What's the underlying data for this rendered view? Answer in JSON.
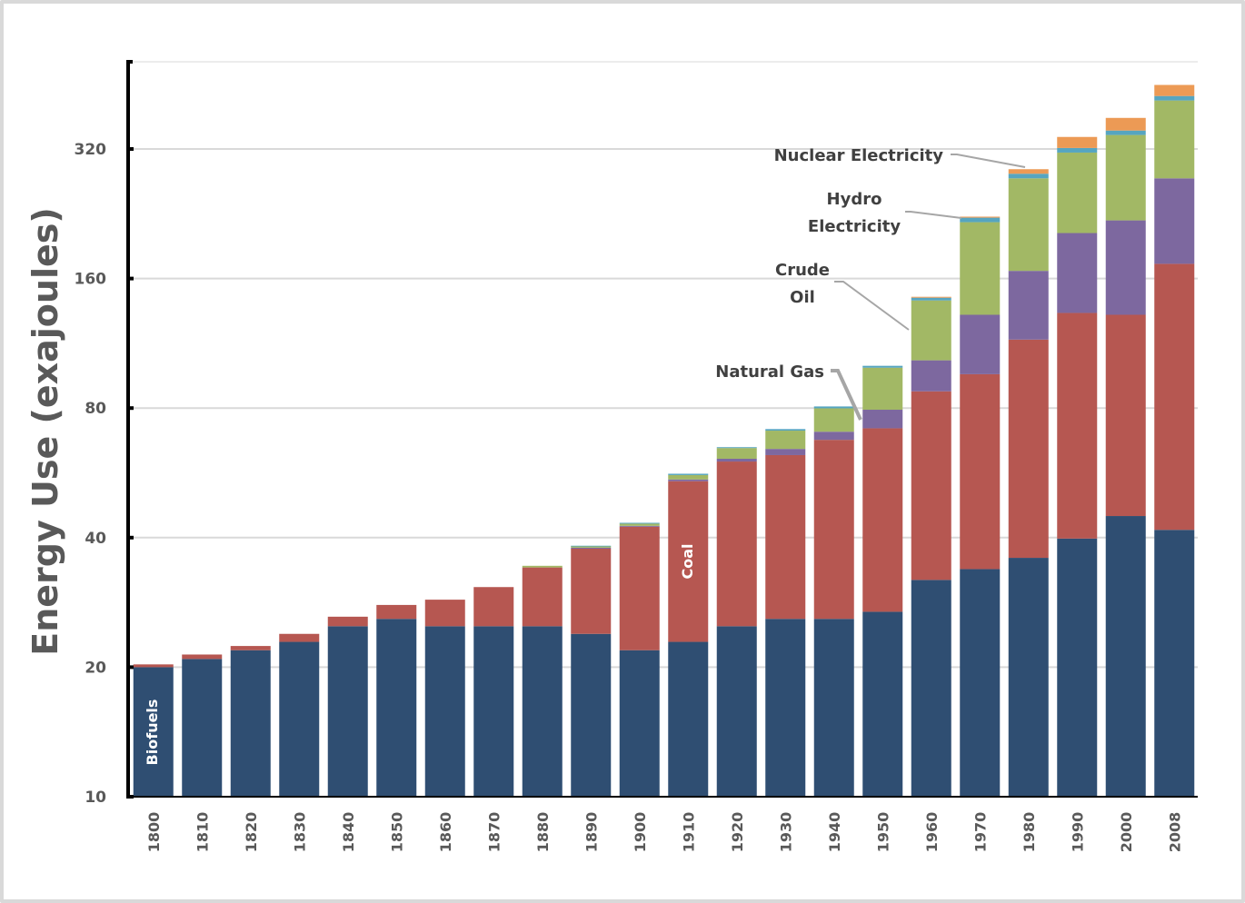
{
  "chart_data": {
    "type": "bar",
    "stacked": true,
    "title": "",
    "xlabel": "",
    "ylabel": "Energy Use (exajoules)",
    "yscale": "log2",
    "ylim": [
      10,
      400
    ],
    "yticks": [
      10,
      20,
      40,
      80,
      160,
      320
    ],
    "ytick_labels": [
      "10",
      "20",
      "40",
      "80",
      "160",
      "320"
    ],
    "grid": true,
    "legend": "none (series labelled by annotations)",
    "categories": [
      "1800",
      "1810",
      "1820",
      "1830",
      "1840",
      "1850",
      "1860",
      "1870",
      "1880",
      "1890",
      "1900",
      "1910",
      "1920",
      "1930",
      "1940",
      "1950",
      "1960",
      "1970",
      "1980",
      "1990",
      "2000",
      "2008"
    ],
    "series": [
      {
        "name": "Biofuels",
        "color": "#2f4e72",
        "values": [
          20.0,
          20.9,
          21.9,
          22.9,
          24.9,
          25.9,
          24.9,
          24.9,
          24.9,
          23.9,
          21.9,
          22.9,
          24.9,
          25.9,
          25.9,
          26.9,
          31.9,
          33.8,
          35.9,
          39.8,
          44.9,
          41.7
        ]
      },
      {
        "name": "Coal",
        "color": "#b65751",
        "values": [
          0.3,
          0.5,
          0.5,
          1.0,
          1.3,
          2.0,
          3.8,
          5.8,
          9.2,
          13.8,
          20.5,
          31.2,
          35.2,
          36.3,
          41.6,
          44.9,
          55.6,
          62.1,
          79.5,
          93.3,
          86.9,
          131.4
        ]
      },
      {
        "name": "Natural Gas",
        "color": "#7d689f",
        "values": [
          0,
          0,
          0,
          0,
          0,
          0,
          0,
          0,
          0,
          0.2,
          0.2,
          0.5,
          0.9,
          2.1,
          3.0,
          7.5,
          15.8,
          35.9,
          51.3,
          71.0,
          86.6,
          100.4
        ]
      },
      {
        "name": "Crude Oil",
        "color": "#a2b865",
        "values": [
          0,
          0,
          0,
          0,
          0,
          0,
          0,
          0,
          0.3,
          0.3,
          0.5,
          1.3,
          3.6,
          6.6,
          9.4,
          20.0,
          39.0,
          84.5,
          106.8,
          109.8,
          126.5,
          141.3
        ]
      },
      {
        "name": "Hydro Electricity",
        "color": "#56a5c0",
        "values": [
          0,
          0,
          0,
          0,
          0,
          0,
          0,
          0,
          0,
          0.1,
          0.2,
          0.4,
          0.3,
          0.6,
          0.8,
          1.0,
          2.1,
          5.3,
          6.8,
          7.8,
          8.3,
          10.1
        ]
      },
      {
        "name": "Nuclear Electricity",
        "color": "#ec9a55",
        "values": [
          0,
          0,
          0,
          0,
          0,
          0,
          0,
          0,
          0,
          0,
          0,
          0,
          0,
          0,
          0,
          0,
          0.7,
          1.2,
          6.9,
          19.6,
          24.7,
          25.9
        ]
      }
    ],
    "annotations": [
      {
        "text": "Biofuels",
        "target_series": "Biofuels",
        "target_category": "1800",
        "placement": "inside-bar-rotated"
      },
      {
        "text": "Coal",
        "target_series": "Coal",
        "target_category": "1910",
        "placement": "inside-bar-rotated"
      },
      {
        "text": "Natural Gas",
        "target_series": "Natural Gas",
        "target_category": "1950",
        "placement": "callout-left"
      },
      {
        "text": "Crude Oil",
        "target_series": "Crude Oil",
        "target_category": "1960",
        "placement": "callout-left"
      },
      {
        "text": "Hydro Electricity",
        "target_series": "Hydro Electricity",
        "target_category": "1970",
        "placement": "callout-left"
      },
      {
        "text": "Nuclear Electricity",
        "target_series": "Nuclear Electricity",
        "target_category": "1980",
        "placement": "callout-left"
      }
    ]
  },
  "labels": {
    "y_title": "Energy Use (exajoules)",
    "biofuels": "Biofuels",
    "coal": "Coal",
    "natural_gas": "Natural Gas",
    "crude_line1": "Crude",
    "crude_line2": "Oil",
    "hydro_line1": "Hydro",
    "hydro_line2": "Electricity",
    "nuclear": "Nuclear Electricity"
  }
}
